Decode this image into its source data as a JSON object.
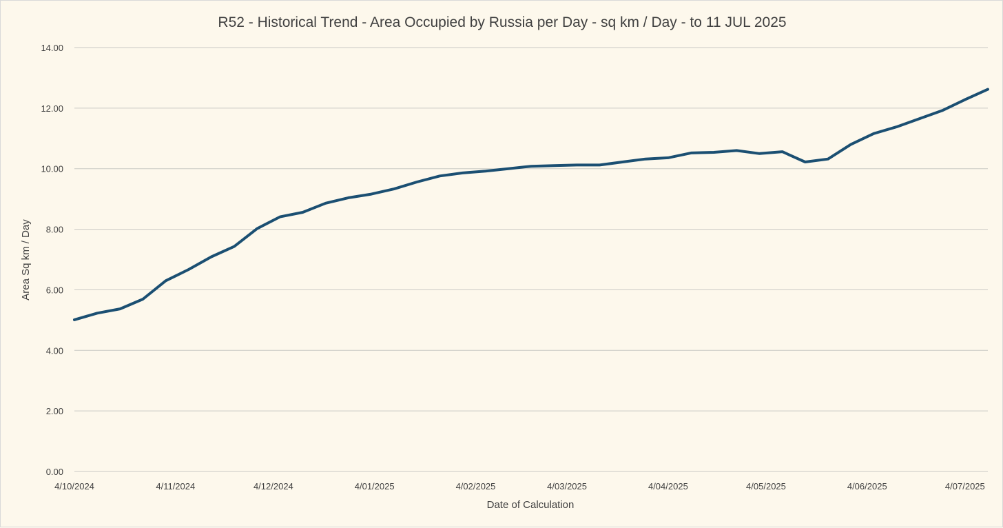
{
  "chart_data": {
    "type": "line",
    "title": "R52 - Historical Trend - Area Occupied by Russia per Day - sq km / Day - to 11 JUL 2025",
    "xlabel": "Date of Calculation",
    "ylabel": "Area Sq km / Day",
    "ylim": [
      0,
      14
    ],
    "y_ticks": [
      "0.00",
      "2.00",
      "4.00",
      "6.00",
      "8.00",
      "10.00",
      "12.00",
      "14.00"
    ],
    "x_tick_labels": [
      "4/10/2024",
      "4/11/2024",
      "4/12/2024",
      "4/01/2025",
      "4/02/2025",
      "4/03/2025",
      "4/04/2025",
      "4/05/2025",
      "4/06/2025",
      "4/07/2025"
    ],
    "x_range": [
      "2024-10-04",
      "2025-07-11"
    ],
    "grid": true,
    "legend": "none",
    "series": [
      {
        "color": "#1b4f72",
        "x": [
          "2024-10-04",
          "2024-10-11",
          "2024-10-18",
          "2024-10-25",
          "2024-11-01",
          "2024-11-08",
          "2024-11-15",
          "2024-11-22",
          "2024-11-29",
          "2024-12-06",
          "2024-12-13",
          "2024-12-20",
          "2024-12-27",
          "2025-01-03",
          "2025-01-10",
          "2025-01-17",
          "2025-01-24",
          "2025-01-31",
          "2025-02-07",
          "2025-02-14",
          "2025-02-21",
          "2025-02-28",
          "2025-03-07",
          "2025-03-14",
          "2025-03-21",
          "2025-03-28",
          "2025-04-04",
          "2025-04-11",
          "2025-04-18",
          "2025-04-25",
          "2025-05-02",
          "2025-05-09",
          "2025-05-16",
          "2025-05-23",
          "2025-05-30",
          "2025-06-06",
          "2025-06-13",
          "2025-06-20",
          "2025-06-27",
          "2025-07-04",
          "2025-07-11"
        ],
        "values": [
          5.01,
          5.23,
          5.37,
          5.69,
          6.3,
          6.67,
          7.09,
          7.43,
          8.02,
          8.41,
          8.56,
          8.86,
          9.04,
          9.16,
          9.33,
          9.56,
          9.76,
          9.86,
          9.92,
          10.0,
          10.08,
          10.1,
          10.12,
          10.12,
          10.22,
          10.32,
          10.36,
          10.52,
          10.54,
          10.6,
          10.5,
          10.56,
          10.22,
          10.32,
          10.8,
          11.16,
          11.38,
          11.65,
          11.92,
          12.28,
          12.62
        ]
      }
    ]
  }
}
